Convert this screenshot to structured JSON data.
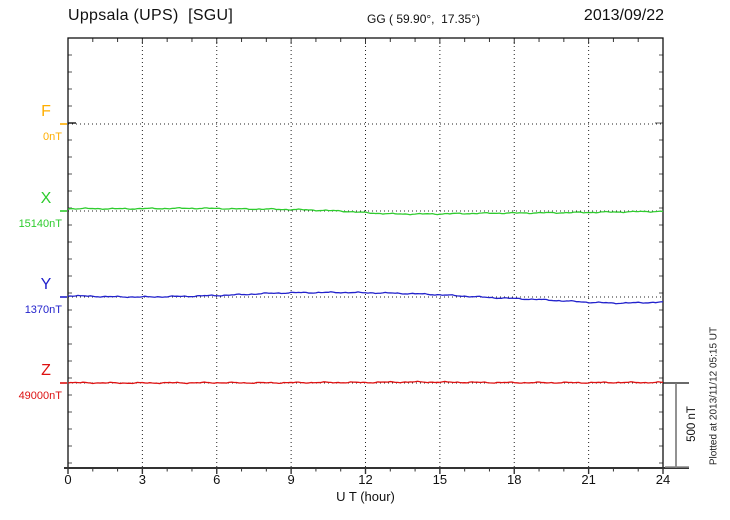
{
  "header": {
    "title": "Uppsala (UPS)  [SGU]",
    "coords": "GG ( 59.90°,  17.35°)",
    "date": "2013/09/22"
  },
  "xaxis": {
    "label": "U T (hour)",
    "major_ticks": [
      0,
      3,
      6,
      9,
      12,
      15,
      18,
      21,
      24
    ]
  },
  "scale_bar": {
    "label": "500 nT",
    "nT": 500
  },
  "footer_note": "Plotted at 2013/11/12 05:15 UT",
  "chart_data": {
    "type": "line",
    "title": "Uppsala (UPS) [SGU] magnetogram 2013/09/22",
    "xlabel": "U T (hour)",
    "xlim": [
      0,
      24
    ],
    "x_major_step": 3,
    "x_minor_step": 1,
    "grid": "dotted vertical at 3h steps, dotted horizontal at component baselines",
    "y_minor_tick_nT": 100,
    "baseline_spacing_nT": 500,
    "x_hours": [
      0,
      1,
      2,
      3,
      4,
      5,
      6,
      7,
      8,
      9,
      10,
      11,
      12,
      13,
      14,
      15,
      16,
      17,
      18,
      19,
      20,
      21,
      22,
      23,
      24
    ],
    "series": [
      {
        "name": "F",
        "value_label": "0nT",
        "color": "#FFAE00",
        "offsets_nT": null
      },
      {
        "name": "X",
        "value_label": "15140nT",
        "color": "#2ECC2E",
        "offsets_nT": [
          14,
          14,
          13,
          14,
          15,
          16,
          15,
          12,
          11,
          9,
          5,
          0,
          -10,
          -17,
          -18,
          -17,
          -15,
          -13,
          -12,
          -11,
          -10,
          -8,
          -6,
          -4,
          -2
        ]
      },
      {
        "name": "Y",
        "value_label": "1370nT",
        "color": "#2222CC",
        "offsets_nT": [
          8,
          4,
          1,
          0,
          2,
          5,
          9,
          14,
          21,
          25,
          26,
          27,
          25,
          23,
          19,
          13,
          5,
          -3,
          -9,
          -15,
          -23,
          -31,
          -36,
          -34,
          -30
        ]
      },
      {
        "name": "Z",
        "value_label": "49000nT",
        "color": "#DD1111",
        "offsets_nT": [
          2,
          1,
          0,
          0,
          1,
          1,
          2,
          1,
          1,
          2,
          3,
          3,
          3,
          5,
          6,
          5,
          4,
          3,
          2,
          2,
          2,
          2,
          3,
          3,
          3
        ]
      }
    ],
    "legend_position": "left margin (component letter above reference value)",
    "annotations": [
      "500 nT scale bar at right of Z trace",
      "Plotted at 2013/11/12 05:15 UT"
    ]
  }
}
